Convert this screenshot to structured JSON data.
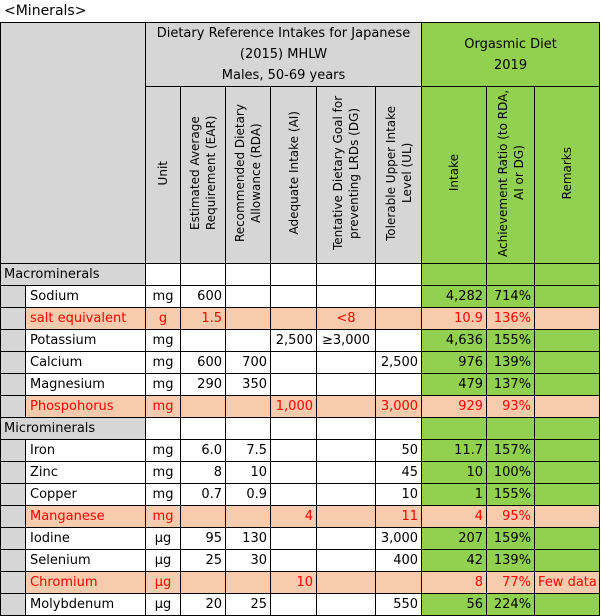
{
  "title": "<Minerals>",
  "header": {
    "dri_title": "Dietary Reference Intakes for Japanese (2015) MHLW",
    "dri_subtitle": "Males, 50-69 years",
    "diet_title": "Orgasmic Diet",
    "diet_year": "2019",
    "columns": {
      "unit": "Unit",
      "ear": "Estimated Average Requirement (EAR)",
      "rda": "Recommended Dietary Allowance (RDA)",
      "ai": "Adequate Intake (AI)",
      "dg": "Tentative Dietary Goal for preventing LRDs (DG)",
      "ul": "Tolerable Upper Intake Level (UL)",
      "intake": "Intake",
      "ratio": "Achievement Ratio (to RDA, AI or DG)",
      "remarks": "Remarks"
    }
  },
  "groups": [
    {
      "label": "Macrominerals",
      "rows": [
        {
          "name": "Sodium",
          "unit": "mg",
          "ear": "600",
          "rda": "",
          "ai": "",
          "dg": "",
          "ul": "",
          "intake": "4,282",
          "ratio": "714%",
          "remarks": "",
          "style": "normal"
        },
        {
          "name": "salt equivalent",
          "unit": "g",
          "ear": "1.5",
          "rda": "",
          "ai": "",
          "dg": "<8",
          "ul": "",
          "intake": "10.9",
          "ratio": "136%",
          "remarks": "",
          "style": "highlight"
        },
        {
          "name": "Potassium",
          "unit": "mg",
          "ear": "",
          "rda": "",
          "ai": "2,500",
          "dg": "≥3,000",
          "ul": "",
          "intake": "4,636",
          "ratio": "155%",
          "remarks": "",
          "style": "normal"
        },
        {
          "name": "Calcium",
          "unit": "mg",
          "ear": "600",
          "rda": "700",
          "ai": "",
          "dg": "",
          "ul": "2,500",
          "intake": "976",
          "ratio": "139%",
          "remarks": "",
          "style": "normal"
        },
        {
          "name": "Magnesium",
          "unit": "mg",
          "ear": "290",
          "rda": "350",
          "ai": "",
          "dg": "",
          "ul": "",
          "intake": "479",
          "ratio": "137%",
          "remarks": "",
          "style": "normal"
        },
        {
          "name": "Phospohorus",
          "unit": "mg",
          "ear": "",
          "rda": "",
          "ai": "1,000",
          "dg": "",
          "ul": "3,000",
          "intake": "929",
          "ratio": "93%",
          "remarks": "",
          "style": "highlight"
        }
      ]
    },
    {
      "label": "Microminerals",
      "rows": [
        {
          "name": "Iron",
          "unit": "mg",
          "ear": "6.0",
          "rda": "7.5",
          "ai": "",
          "dg": "",
          "ul": "50",
          "intake": "11.7",
          "ratio": "157%",
          "remarks": "",
          "style": "normal"
        },
        {
          "name": "Zinc",
          "unit": "mg",
          "ear": "8",
          "rda": "10",
          "ai": "",
          "dg": "",
          "ul": "45",
          "intake": "10",
          "ratio": "100%",
          "remarks": "",
          "style": "normal"
        },
        {
          "name": "Copper",
          "unit": "mg",
          "ear": "0.7",
          "rda": "0.9",
          "ai": "",
          "dg": "",
          "ul": "10",
          "intake": "1",
          "ratio": "155%",
          "remarks": "",
          "style": "normal"
        },
        {
          "name": "Manganese",
          "unit": "mg",
          "ear": "",
          "rda": "",
          "ai": "4",
          "dg": "",
          "ul": "11",
          "intake": "4",
          "ratio": "95%",
          "remarks": "",
          "style": "highlight"
        },
        {
          "name": "Iodine",
          "unit": "μg",
          "ear": "95",
          "rda": "130",
          "ai": "",
          "dg": "",
          "ul": "3,000",
          "intake": "207",
          "ratio": "159%",
          "remarks": "",
          "style": "normal"
        },
        {
          "name": "Selenium",
          "unit": "μg",
          "ear": "25",
          "rda": "30",
          "ai": "",
          "dg": "",
          "ul": "400",
          "intake": "42",
          "ratio": "139%",
          "remarks": "",
          "style": "normal"
        },
        {
          "name": "Chromium",
          "unit": "μg",
          "ear": "",
          "rda": "",
          "ai": "10",
          "dg": "",
          "ul": "",
          "intake": "8",
          "ratio": "77%",
          "remarks": "Few data",
          "style": "highlight"
        },
        {
          "name": "Molybdenum",
          "unit": "μg",
          "ear": "20",
          "rda": "25",
          "ai": "",
          "dg": "",
          "ul": "550",
          "intake": "56",
          "ratio": "224%",
          "remarks": "",
          "style": "normal"
        }
      ]
    }
  ]
}
